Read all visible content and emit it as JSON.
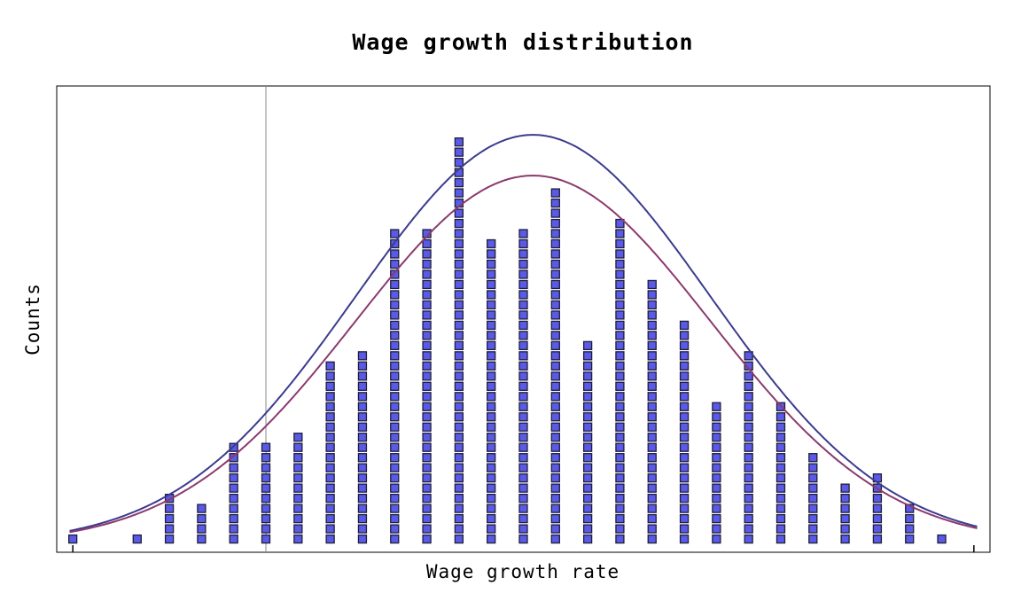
{
  "chart_data": {
    "type": "bar",
    "title": "Wage growth distribution",
    "xlabel": "Wage growth rate",
    "ylabel": "Counts",
    "xlim": [
      -0.5,
      28.5
    ],
    "ylim": [
      -0.8,
      45
    ],
    "grid": false,
    "legend": "none",
    "marker_style": "stacked squares",
    "x": [
      0,
      2,
      3,
      4,
      5,
      6,
      7,
      8,
      9,
      10,
      11,
      12,
      13,
      14,
      15,
      16,
      17,
      18,
      19,
      20,
      21,
      22,
      23,
      24,
      25,
      26,
      27,
      28
    ],
    "values": [
      1,
      1,
      5,
      4,
      10,
      10,
      11,
      18,
      19,
      31,
      31,
      40,
      30,
      31,
      35,
      20,
      32,
      26,
      22,
      14,
      19,
      14,
      9,
      6,
      7,
      4,
      1,
      0
    ],
    "reference_line_x": 6,
    "curves": [
      {
        "type": "normal",
        "mean": 14.3,
        "sd": 5.5,
        "peak": 40.2,
        "color": "#3b3b8f"
      },
      {
        "type": "normal",
        "mean": 14.3,
        "sd": 5.5,
        "peak": 36.2,
        "color": "#8b3a6e"
      }
    ],
    "colors": {
      "marker_fill": "#5a5ae6",
      "marker_stroke": "#1e1e3c",
      "frame": "#000000",
      "ref_line": "#888888"
    }
  }
}
